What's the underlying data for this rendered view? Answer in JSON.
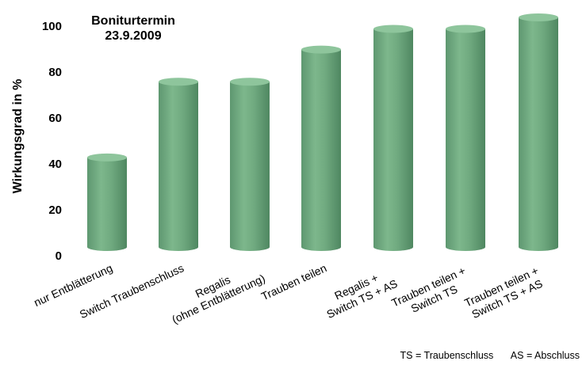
{
  "chart_data": {
    "type": "bar",
    "title": [
      "Boniturtermin",
      "23.9.2009"
    ],
    "ylabel": "Wirkungsgrad in %",
    "ylim": [
      0,
      100
    ],
    "yticks": [
      0,
      20,
      40,
      60,
      80,
      100
    ],
    "categories": [
      [
        "nur Entblätterung"
      ],
      [
        "Switch Traubenschluss"
      ],
      [
        "Regalis",
        "(ohne Entblätterung)"
      ],
      [
        "Trauben teilen"
      ],
      [
        "Regalis +",
        "Switch TS + AS"
      ],
      [
        "Trauben teilen +",
        "Switch TS"
      ],
      [
        "Trauben teilen +",
        "Switch TS + AS"
      ]
    ],
    "values": [
      39,
      72,
      72,
      86,
      95,
      95,
      100
    ],
    "grid": false,
    "bar_color": "#6da57c"
  },
  "footnote": {
    "ts": "TS = Traubenschluss",
    "as": "AS = Abschluss"
  }
}
